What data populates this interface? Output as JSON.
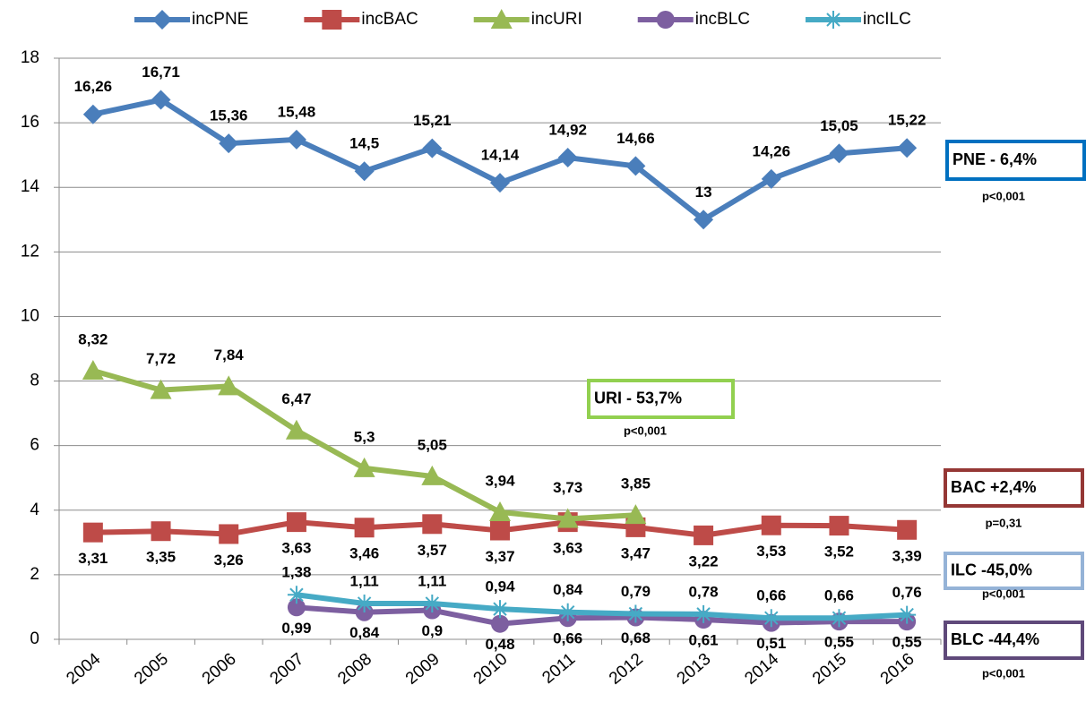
{
  "chart_data": {
    "type": "line",
    "categories": [
      "2004",
      "2005",
      "2006",
      "2007",
      "2008",
      "2009",
      "2010",
      "2011",
      "2012",
      "2013",
      "2014",
      "2015",
      "2016"
    ],
    "series": [
      {
        "name": "incPNE",
        "color": "#4a7ebb",
        "marker": "diamond",
        "values": [
          16.26,
          16.71,
          15.36,
          15.48,
          14.5,
          15.21,
          14.14,
          14.92,
          14.66,
          13,
          14.26,
          15.05,
          15.22
        ],
        "value_labels": [
          "16,26",
          "16,71",
          "15,36",
          "15,48",
          "14,5",
          "15,21",
          "14,14",
          "14,92",
          "14,66",
          "13",
          "14,26",
          "15,05",
          "15,22"
        ]
      },
      {
        "name": "incBAC",
        "color": "#be4b48",
        "marker": "square",
        "values": [
          3.31,
          3.35,
          3.26,
          3.63,
          3.46,
          3.57,
          3.37,
          3.63,
          3.47,
          3.22,
          3.53,
          3.52,
          3.39
        ],
        "value_labels": [
          "3,31",
          "3,35",
          "3,26",
          "3,63",
          "3,46",
          "3,57",
          "3,37",
          "3,63",
          "3,47",
          "3,22",
          "3,53",
          "3,52",
          "3,39"
        ]
      },
      {
        "name": "incURI",
        "color": "#98b954",
        "marker": "triangle",
        "values": [
          8.32,
          7.72,
          7.84,
          6.47,
          5.3,
          5.05,
          3.94,
          3.73,
          3.85,
          null,
          null,
          null,
          null
        ],
        "value_labels": [
          "8,32",
          "7,72",
          "7,84",
          "6,47",
          "5,3",
          "5,05",
          "3,94",
          "3,73",
          "3,85",
          null,
          null,
          null,
          null
        ]
      },
      {
        "name": "incBLC",
        "color": "#7d5fa0",
        "marker": "circle",
        "values": [
          null,
          null,
          null,
          0.99,
          0.84,
          0.9,
          0.48,
          0.66,
          0.68,
          0.61,
          0.51,
          0.55,
          0.55
        ],
        "value_labels": [
          null,
          null,
          null,
          "0,99",
          "0,84",
          "0,9",
          "0,48",
          "0,66",
          "0,68",
          "0,61",
          "0,51",
          "0,55",
          "0,55"
        ]
      },
      {
        "name": "incILC",
        "color": "#46aac5",
        "marker": "asterisk",
        "values": [
          null,
          null,
          null,
          1.38,
          1.11,
          1.11,
          0.94,
          0.84,
          0.79,
          0.78,
          0.66,
          0.66,
          0.76
        ],
        "value_labels": [
          null,
          null,
          null,
          "1,38",
          "1,11",
          "1,11",
          "0,94",
          "0,84",
          "0,79",
          "0,78",
          "0,66",
          "0,66",
          "0,76"
        ]
      }
    ],
    "ylim": [
      0,
      18
    ],
    "yticks": [
      0,
      2,
      4,
      6,
      8,
      10,
      12,
      14,
      16,
      18
    ],
    "grid": true,
    "legend": "top",
    "annotations": [
      {
        "text": "PNE - 6,4%",
        "sub": "p<0,001",
        "color": "#0070c0"
      },
      {
        "text": "URI - 53,7%",
        "sub": "p<0,001",
        "color": "#92d050"
      },
      {
        "text": "BAC +2,4%",
        "sub": "p=0,31",
        "color": "#953735"
      },
      {
        "text": "ILC -45,0%",
        "sub": "p<0,001",
        "color": "#95b3d7"
      },
      {
        "text": "BLC -44,4%",
        "sub": "p<0,001",
        "color": "#5f497a"
      }
    ]
  }
}
